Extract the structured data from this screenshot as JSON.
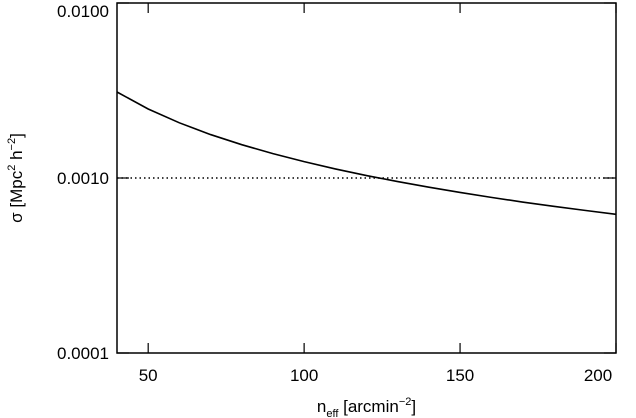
{
  "chart_data": {
    "type": "line",
    "xlabel": [
      {
        "text": "n",
        "pos": "base"
      },
      {
        "text": "eff",
        "pos": "sub"
      },
      {
        "text": " [arcmin",
        "pos": "base"
      },
      {
        "text": "−2",
        "pos": "sup"
      },
      {
        "text": "]",
        "pos": "base"
      }
    ],
    "ylabel": [
      {
        "text": "σ [Mpc",
        "pos": "base"
      },
      {
        "text": "2",
        "pos": "sup"
      },
      {
        "text": " h",
        "pos": "base"
      },
      {
        "text": "−2",
        "pos": "sup"
      },
      {
        "text": "]",
        "pos": "base"
      }
    ],
    "x": [
      40,
      50,
      60,
      70,
      80,
      90,
      100,
      110,
      120,
      130,
      140,
      150,
      160,
      170,
      180,
      190,
      200
    ],
    "series": [
      {
        "color": "#000000",
        "values": [
          0.0031,
          0.00248,
          0.002067,
          0.001771,
          0.00155,
          0.001378,
          0.00124,
          0.001127,
          0.001033,
          0.000954,
          0.000886,
          0.000827,
          0.000775,
          0.000729,
          0.000689,
          0.000653,
          0.00062
        ]
      }
    ],
    "hline": 0.001,
    "xlim": [
      40,
      200
    ],
    "xticks": [
      50,
      100,
      150,
      200
    ],
    "ylim": [
      0.0001,
      0.01
    ],
    "ylog": true,
    "yticks": [
      {
        "value": 0.0001,
        "label": "0.0001"
      },
      {
        "value": 0.001,
        "label": "0.0010"
      },
      {
        "value": 0.01,
        "label": "0.0100"
      }
    ]
  }
}
